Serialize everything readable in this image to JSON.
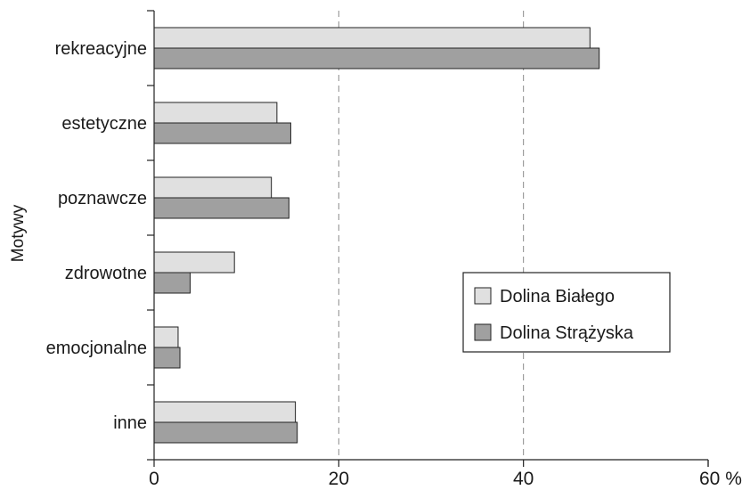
{
  "chart_data": {
    "type": "bar",
    "orientation": "horizontal",
    "ylabel": "Motywy",
    "xlabel": "",
    "x_unit": "%",
    "xlim": [
      0,
      60
    ],
    "x_ticks": [
      0,
      20,
      40,
      60
    ],
    "x_tick_labels": [
      "0",
      "20",
      "40",
      "60 %"
    ],
    "grid": "vertical dashed at 20 and 40",
    "legend_position": "center-right",
    "categories": [
      "rekreacyjne",
      "estetyczne",
      "poznawcze",
      "zdrowotne",
      "emocjonalne",
      "inne"
    ],
    "series": [
      {
        "name": "Dolina Białego",
        "color": "#e0e0e0",
        "values": [
          47.2,
          13.3,
          12.7,
          8.7,
          2.6,
          15.3
        ]
      },
      {
        "name": "Dolina Strążyska",
        "color": "#a0a0a0",
        "values": [
          48.2,
          14.8,
          14.6,
          3.9,
          2.8,
          15.5
        ]
      }
    ]
  }
}
